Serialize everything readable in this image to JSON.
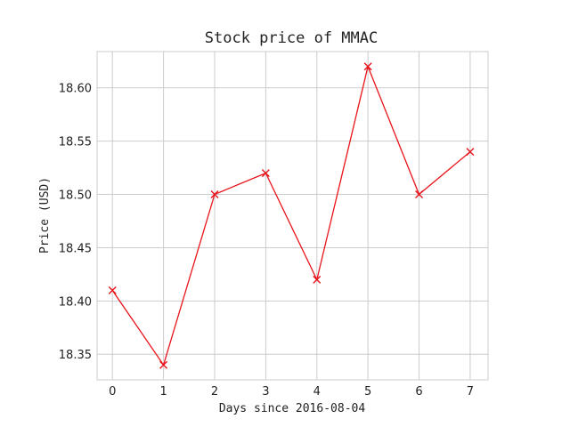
{
  "chart_data": {
    "type": "line",
    "title": "Stock price of MMAC",
    "xlabel": "Days since 2016-08-04",
    "ylabel": "Price (USD)",
    "x": [
      0,
      1,
      2,
      3,
      4,
      5,
      6,
      7
    ],
    "series": [
      {
        "values": [
          18.41,
          18.34,
          18.5,
          18.52,
          18.42,
          18.62,
          18.5,
          18.54
        ]
      }
    ],
    "x_ticks": [
      "0",
      "1",
      "2",
      "3",
      "4",
      "5",
      "6",
      "7"
    ],
    "y_ticks": [
      "18.35",
      "18.40",
      "18.45",
      "18.50",
      "18.55",
      "18.60"
    ],
    "xlim": [
      -0.3,
      7.35
    ],
    "ylim": [
      18.326,
      18.634
    ],
    "grid": true,
    "marker": "x",
    "color": "#e8141b"
  }
}
